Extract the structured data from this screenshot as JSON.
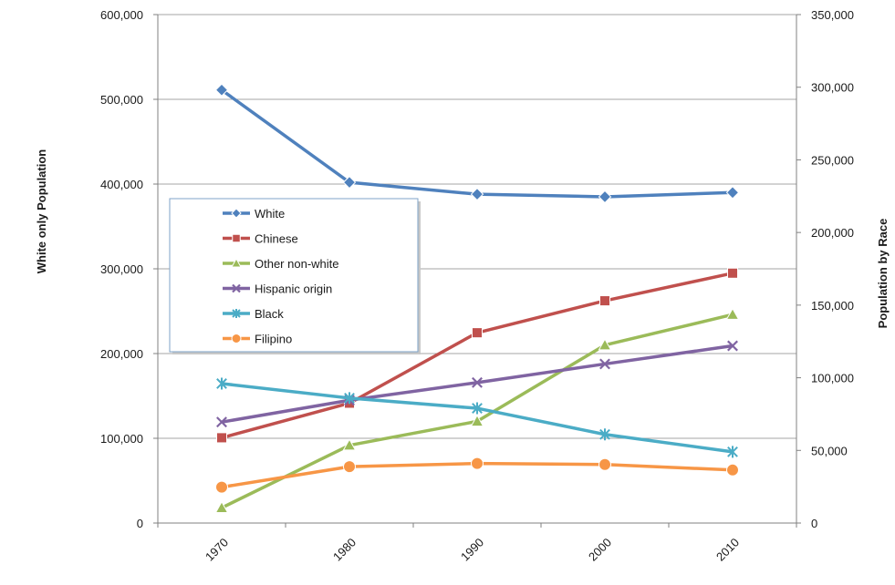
{
  "chart_data": {
    "type": "line",
    "title": "",
    "x": [
      "1970",
      "1980",
      "1990",
      "2000",
      "2010"
    ],
    "y_left": {
      "label": "White only Population",
      "ylim": [
        0,
        600000
      ],
      "ticks": [
        "0",
        "100,000",
        "200,000",
        "300,000",
        "400,000",
        "500,000",
        "600,000"
      ]
    },
    "y_right": {
      "label": "Population by Race",
      "ylim": [
        0,
        350000
      ],
      "ticks": [
        "0",
        "50,000",
        "100,000",
        "150,000",
        "200,000",
        "250,000",
        "300,000",
        "350,000"
      ]
    },
    "grid": true,
    "legend_position": "center-left",
    "series": [
      {
        "name": "White",
        "axis": "left",
        "color": "#4f81bd",
        "marker": "diamond",
        "values": [
          511000,
          402000,
          388000,
          385000,
          390000
        ]
      },
      {
        "name": "Chinese",
        "axis": "right",
        "color": "#c0504d",
        "marker": "square",
        "values": [
          58700,
          82500,
          131000,
          153000,
          172000
        ]
      },
      {
        "name": "Other non-white",
        "axis": "right",
        "color": "#9bbb59",
        "marker": "triangle",
        "values": [
          10500,
          53500,
          70000,
          122500,
          143500
        ]
      },
      {
        "name": "Hispanic origin",
        "axis": "right",
        "color": "#8064a2",
        "marker": "x",
        "values": [
          69500,
          84500,
          96700,
          109500,
          122000
        ]
      },
      {
        "name": "Black",
        "axis": "right",
        "color": "#4bacc6",
        "marker": "star",
        "values": [
          96000,
          86000,
          79000,
          61000,
          49000
        ]
      },
      {
        "name": "Filipino",
        "axis": "right",
        "color": "#f79646",
        "marker": "circle",
        "values": [
          24700,
          38800,
          41000,
          40300,
          36500
        ]
      }
    ]
  }
}
